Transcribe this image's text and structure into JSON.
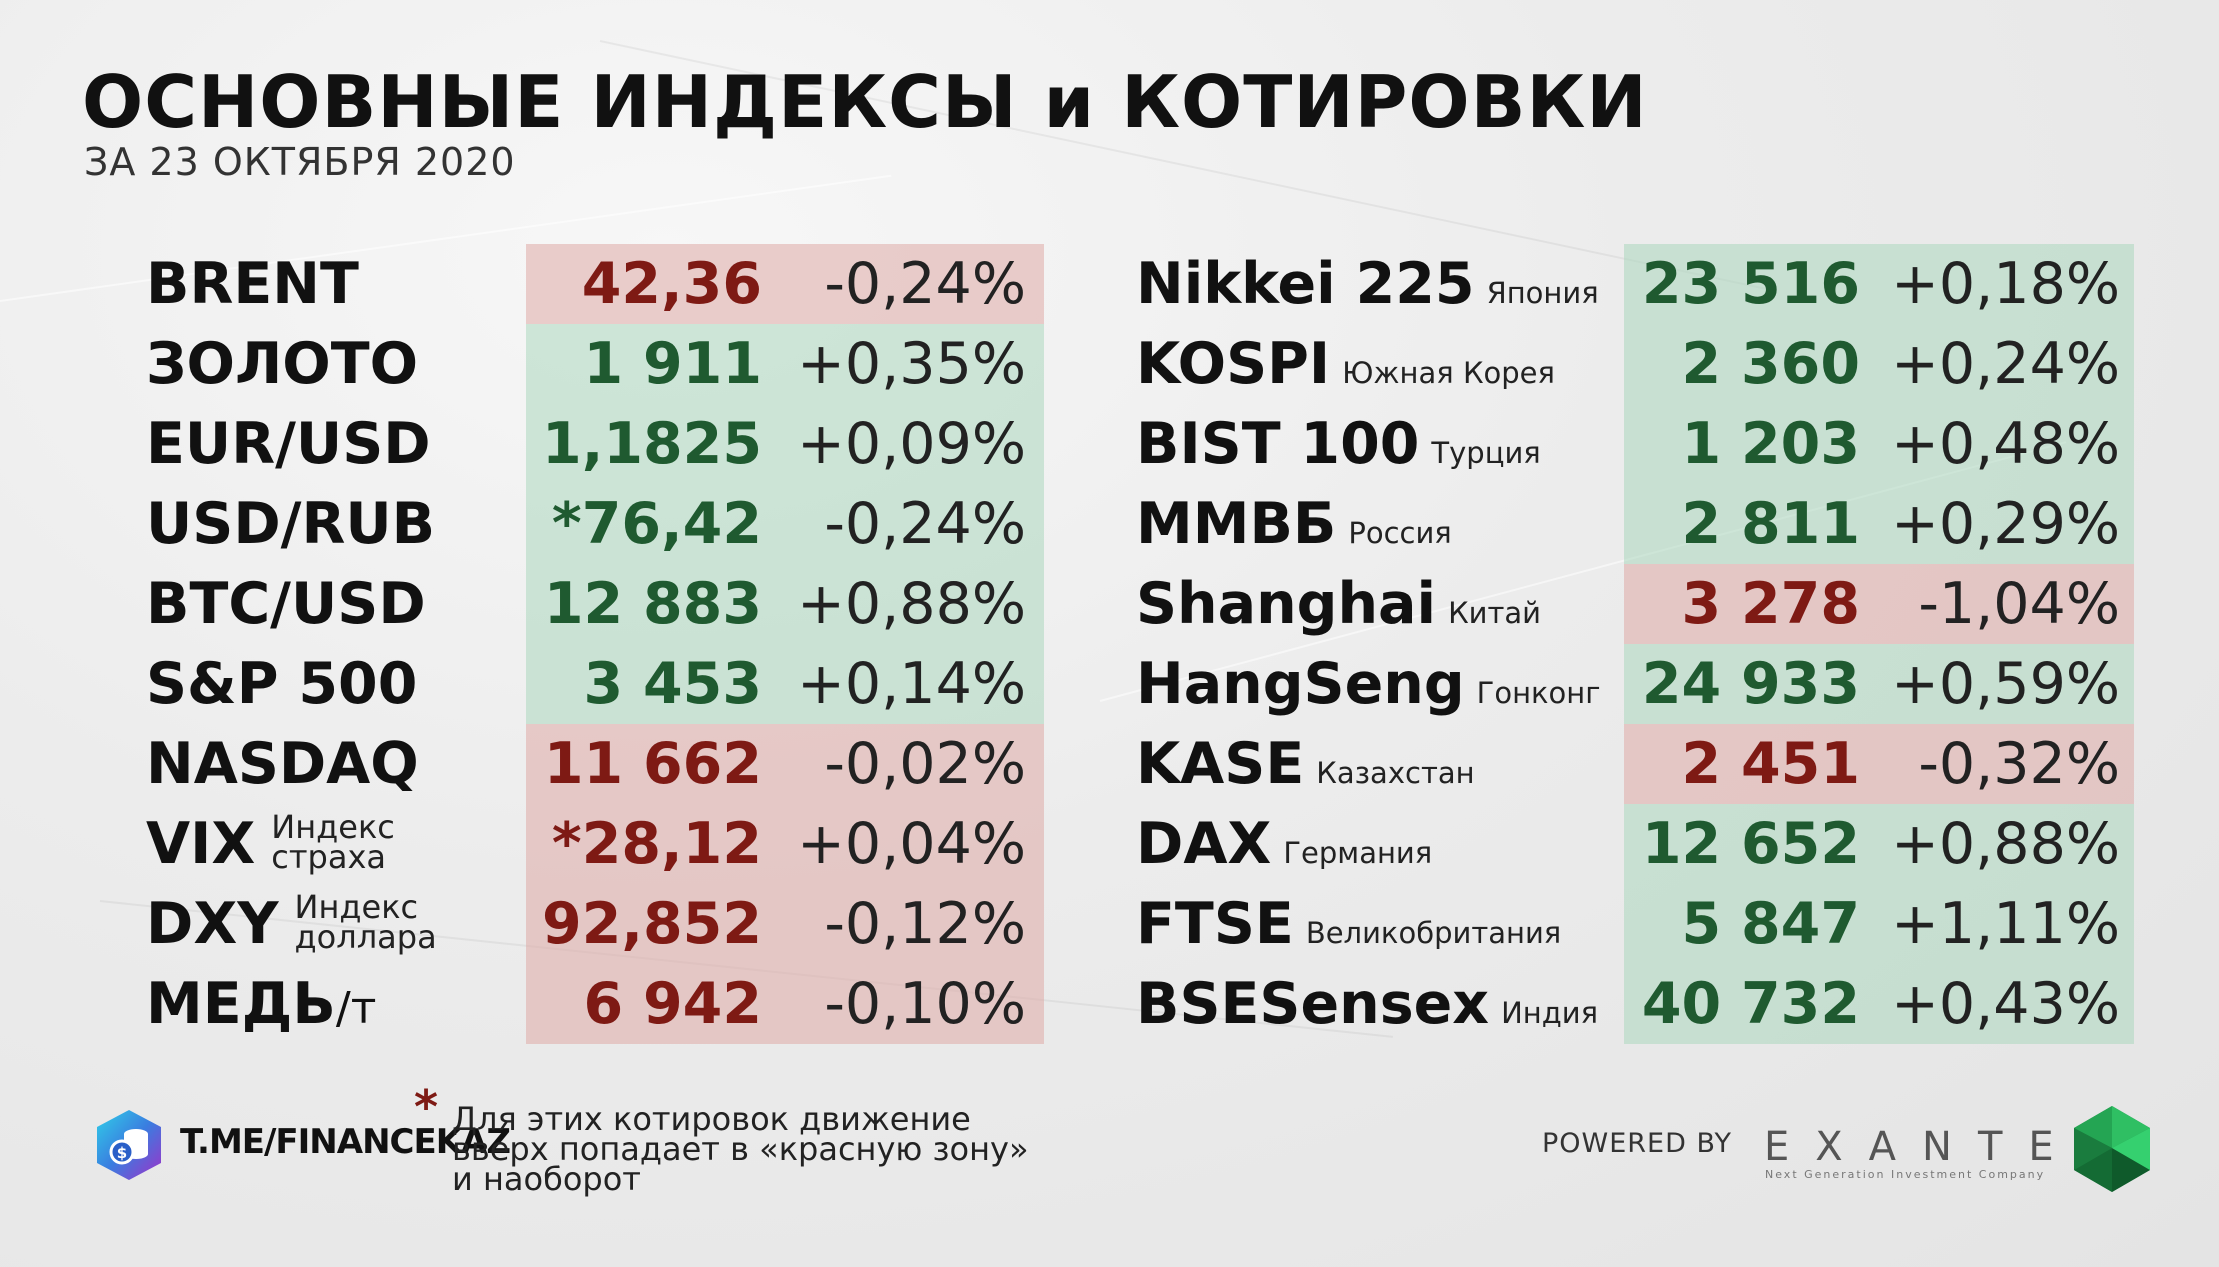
{
  "header": {
    "title": "ОСНОВНЫЕ ИНДЕКСЫ и КОТИРОВКИ",
    "subtitle": "ЗА 23 ОКТЯБРЯ 2020"
  },
  "colors": {
    "up": "#1f5a30",
    "down": "#7e1a14",
    "up_band": "#acd7be",
    "down_band": "#deaaa5"
  },
  "left": [
    {
      "name": "BRENT",
      "suffix": "",
      "value": "42,36",
      "change": "-0,24%",
      "status": "down"
    },
    {
      "name": "ЗОЛОТО",
      "suffix": "",
      "value": "1 911",
      "change": "+0,35%",
      "status": "up"
    },
    {
      "name": "EUR/USD",
      "suffix": "",
      "value": "1,1825",
      "change": "+0,09%",
      "status": "up"
    },
    {
      "name": "USD/RUB",
      "suffix": "",
      "value": "*76,42",
      "change": "-0,24%",
      "status": "up"
    },
    {
      "name": "BTC/USD",
      "suffix": "",
      "value": "12 883",
      "change": "+0,88%",
      "status": "up"
    },
    {
      "name": "S&P 500",
      "suffix": "",
      "value": "3 453",
      "change": "+0,14%",
      "status": "up"
    },
    {
      "name": "NASDAQ",
      "suffix": "",
      "value": "11 662",
      "change": "-0,02%",
      "status": "down"
    },
    {
      "name": "VIX",
      "desc1": "Индекс",
      "desc2": "страха",
      "value": "*28,12",
      "change": "+0,04%",
      "status": "down"
    },
    {
      "name": "DXY",
      "desc1": "Индекс",
      "desc2": "доллара",
      "value": "92,852",
      "change": "-0,12%",
      "status": "down"
    },
    {
      "name": "МЕДЬ",
      "suffix": "/т",
      "value": "6 942",
      "change": "-0,10%",
      "status": "down"
    }
  ],
  "right": [
    {
      "name": "Nikkei 225",
      "country": "Япония",
      "value": "23 516",
      "change": "+0,18%",
      "status": "up"
    },
    {
      "name": "KOSPI",
      "country": "Южная Корея",
      "value": "2 360",
      "change": "+0,24%",
      "status": "up"
    },
    {
      "name": "BIST 100",
      "country": "Турция",
      "value": "1 203",
      "change": "+0,48%",
      "status": "up"
    },
    {
      "name": "ММВБ",
      "country": "Россия",
      "value": "2 811",
      "change": "+0,29%",
      "status": "up"
    },
    {
      "name": "Shanghai",
      "country": "Китай",
      "value": "3 278",
      "change": "-1,04%",
      "status": "down"
    },
    {
      "name": "HangSeng",
      "country": "Гонконг",
      "value": "24 933",
      "change": "+0,59%",
      "status": "up"
    },
    {
      "name": "KASE",
      "country": "Казахстан",
      "value": "2 451",
      "change": "-0,32%",
      "status": "down"
    },
    {
      "name": "DAX",
      "country": "Германия",
      "value": "12 652",
      "change": "+0,88%",
      "status": "up"
    },
    {
      "name": "FTSE",
      "country": "Великобритания",
      "value": "5 847",
      "change": "+1,11%",
      "status": "up"
    },
    {
      "name": "BSESensex",
      "country": "Индия",
      "value": "40 732",
      "change": "+0,43%",
      "status": "up"
    }
  ],
  "footer": {
    "telegram": "T.ME/FINANCEKAZ",
    "star": "*",
    "note": [
      "Для этих котировок движение",
      "вверх попадает в «красную зону»",
      "и наоборот"
    ],
    "powered_by": "POWERED BY",
    "brand": "EXANTE",
    "brand_tagline": "Next Generation Investment Company",
    "icons": [
      "coin-stack-hexagon-icon",
      "green-gem-icon"
    ]
  }
}
